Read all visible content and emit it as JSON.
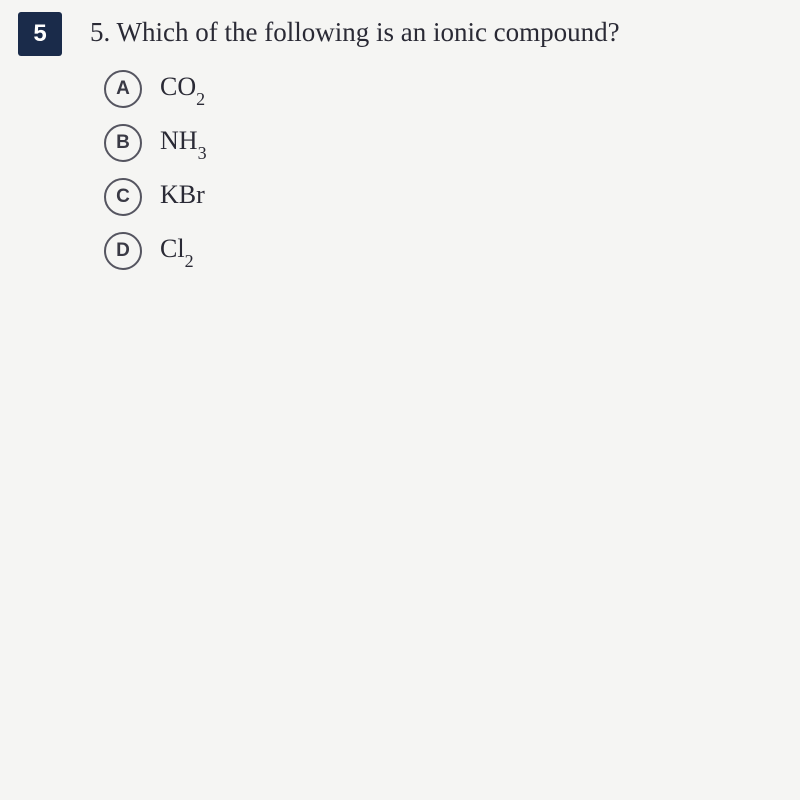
{
  "badge": {
    "number": "5",
    "background_color": "#1a2b4a",
    "text_color": "#ffffff"
  },
  "question": {
    "number": "5.",
    "text": "Which of the following is an ionic compound?",
    "font_size": 27,
    "text_color": "#2a2a35"
  },
  "choices": [
    {
      "letter": "A",
      "formula": "CO",
      "subscript": "2"
    },
    {
      "letter": "B",
      "formula": "NH",
      "subscript": "3"
    },
    {
      "letter": "C",
      "formula": "KBr",
      "subscript": ""
    },
    {
      "letter": "D",
      "formula": "Cl",
      "subscript": "2"
    }
  ],
  "styling": {
    "choice_circle_border_color": "#555560",
    "choice_letter_color": "#3a3a45",
    "choice_text_color": "#2a2a35",
    "choice_font_size": 26,
    "circle_diameter": 38,
    "background_color": "#f5f5f3"
  }
}
